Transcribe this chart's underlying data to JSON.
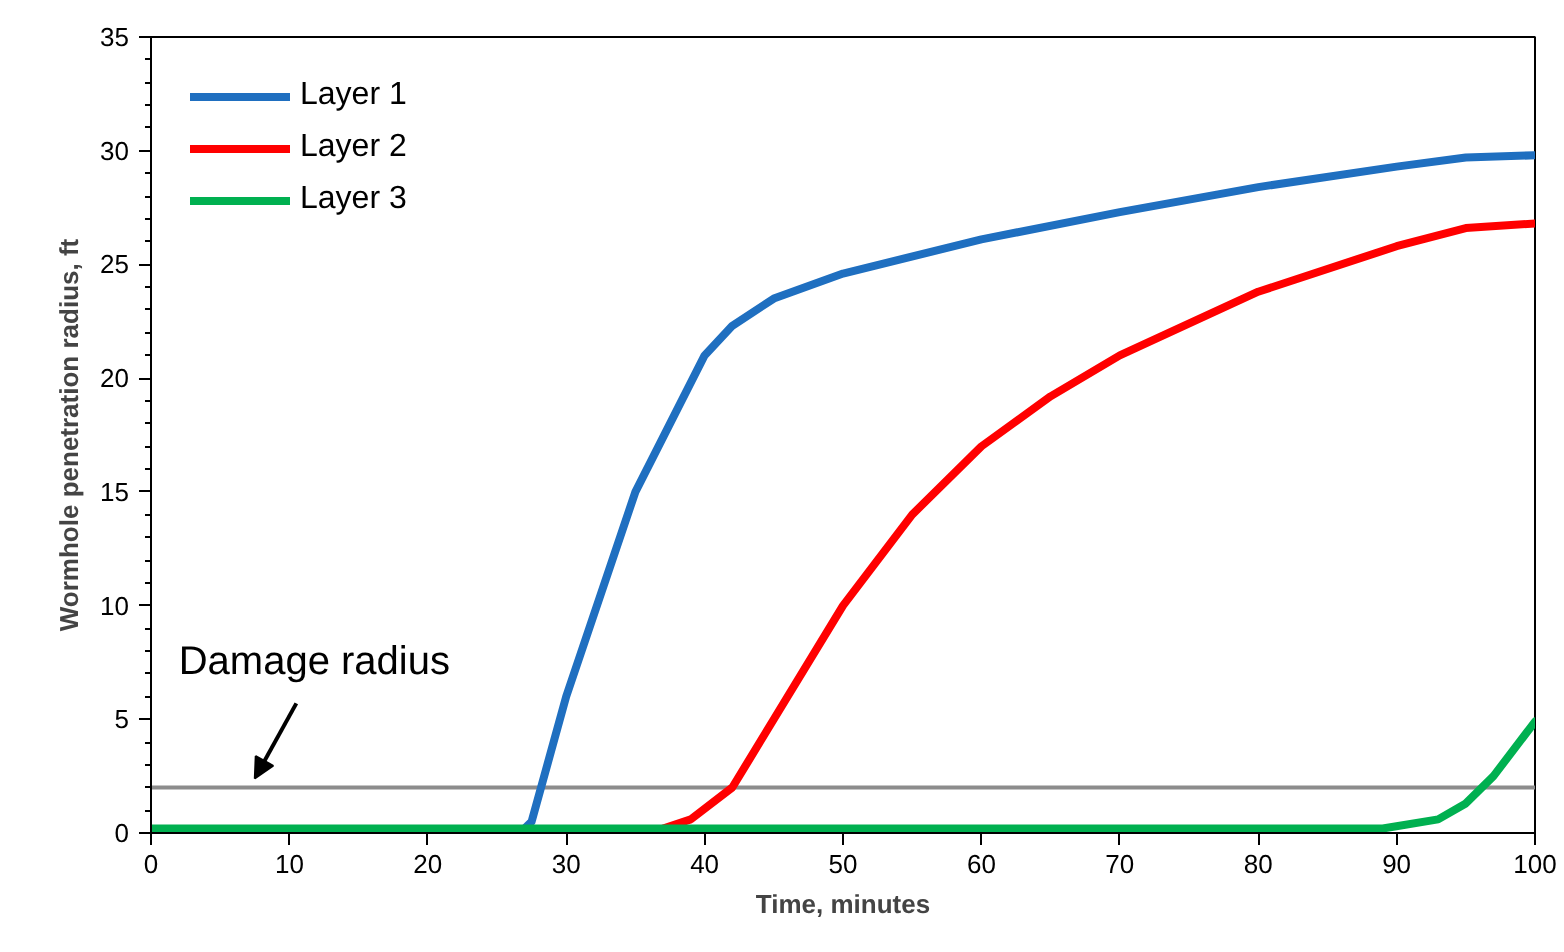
{
  "chart_data": {
    "type": "line",
    "xlabel": "Time, minutes",
    "ylabel": "Wormhole penetration radius, ft",
    "series": [
      {
        "name": "Layer 1",
        "color": "#1f6fc0",
        "x": [
          27,
          27.5,
          30,
          35,
          40,
          42,
          45,
          50,
          60,
          70,
          80,
          90,
          95,
          100
        ],
        "values": [
          0.2,
          0.5,
          6,
          15,
          21,
          22.3,
          23.5,
          24.6,
          26.1,
          27.3,
          28.4,
          29.3,
          29.7,
          29.8
        ]
      },
      {
        "name": "Layer 2",
        "color": "#ff0000",
        "x": [
          37,
          39,
          42,
          45,
          50,
          55,
          60,
          65,
          70,
          80,
          90,
          95,
          100
        ],
        "values": [
          0.2,
          0.6,
          2,
          5,
          10,
          14,
          17,
          19.2,
          21,
          23.8,
          25.8,
          26.6,
          26.8
        ]
      },
      {
        "name": "Layer 3",
        "color": "#00b050",
        "x": [
          0,
          20,
          40,
          60,
          80,
          89,
          93,
          95,
          97,
          100
        ],
        "values": [
          0.2,
          0.2,
          0.2,
          0.2,
          0.2,
          0.2,
          0.6,
          1.3,
          2.5,
          4.9
        ]
      }
    ],
    "xlim": [
      0,
      100
    ],
    "xticks": [
      0,
      10,
      20,
      30,
      40,
      50,
      60,
      70,
      80,
      90,
      100
    ],
    "ylim": [
      0,
      35
    ],
    "yticks": [
      0,
      5,
      10,
      15,
      20,
      25,
      30,
      35
    ],
    "ref_lines": [
      {
        "axis": "y",
        "value": 2,
        "color": "#8c8c8c"
      }
    ],
    "annotations": [
      {
        "text": "Damage radius",
        "x": 7.5,
        "y": 2
      }
    ],
    "legend": "top left",
    "grid": false,
    "marker": "none",
    "line_style": "solid"
  }
}
